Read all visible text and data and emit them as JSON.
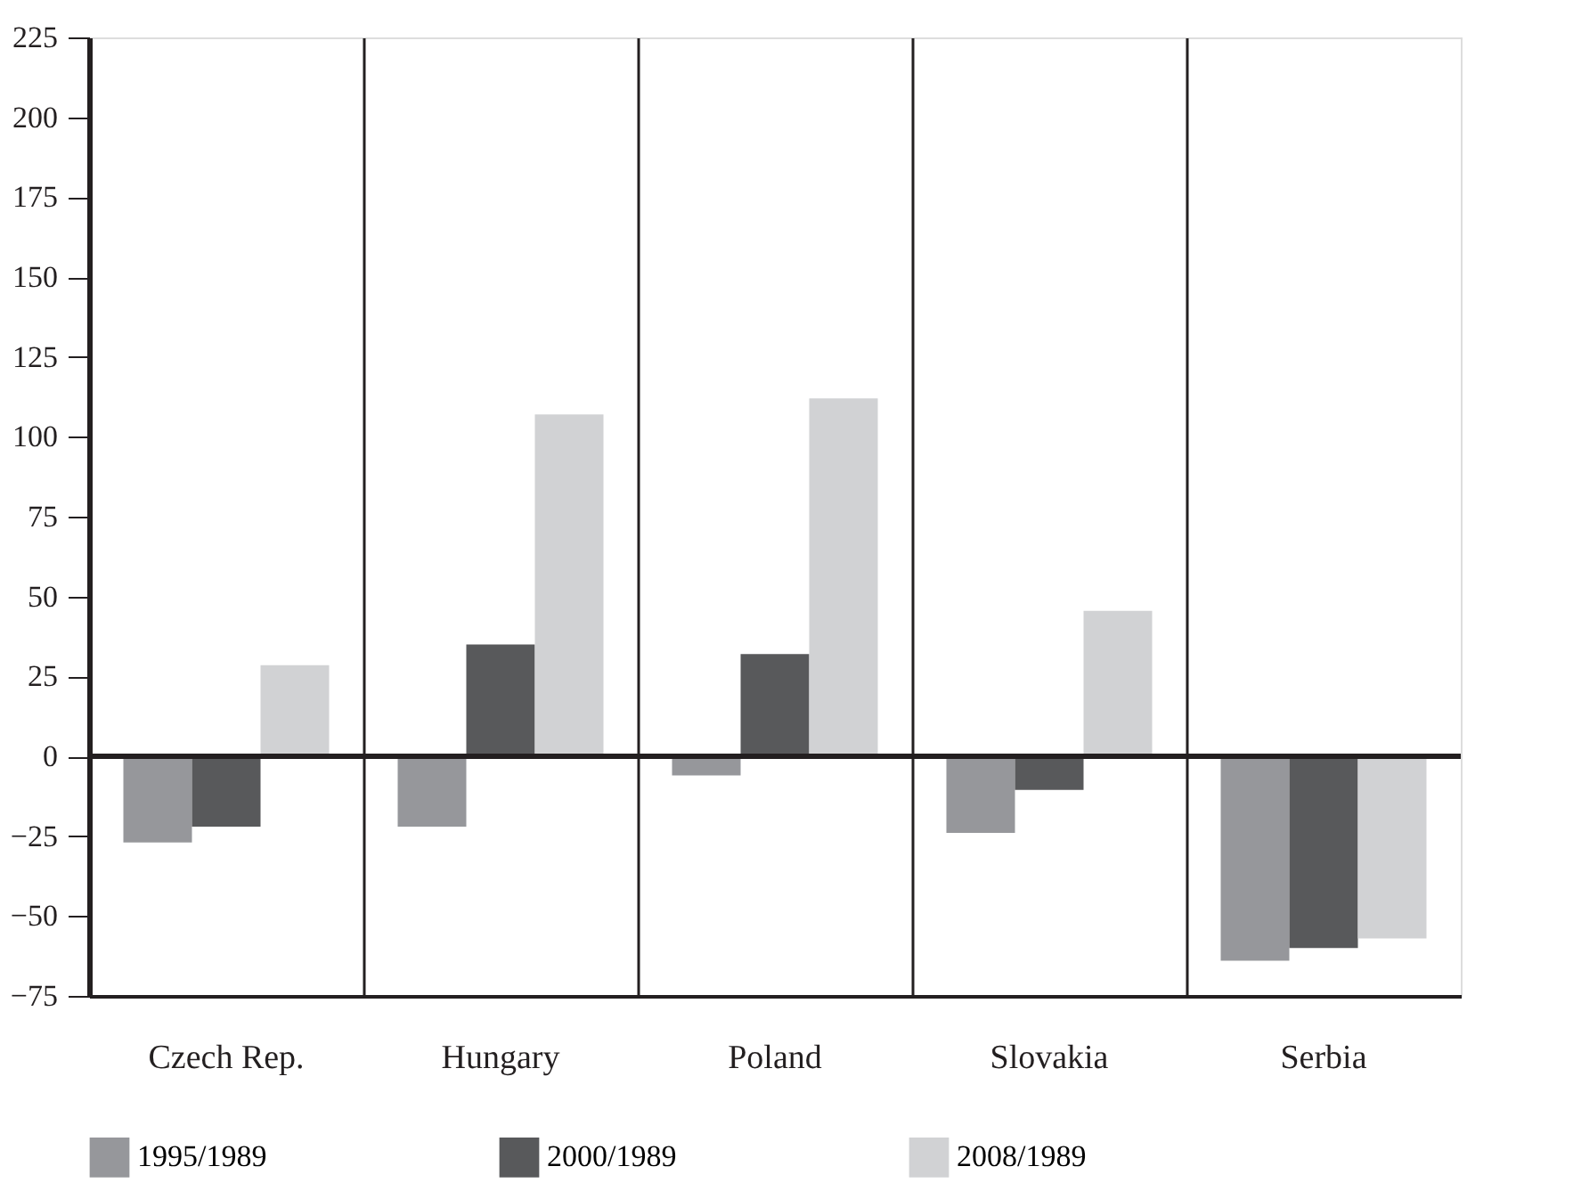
{
  "chart_data": {
    "type": "bar",
    "categories": [
      "Czech Rep.",
      "Hungary",
      "Poland",
      "Slovakia",
      "Serbia"
    ],
    "series": [
      {
        "name": "1995/1989",
        "color": "#96979b",
        "values": [
          -27,
          -22,
          -6,
          -24,
          -64
        ]
      },
      {
        "name": "2000/1989",
        "color": "#58595b",
        "values": [
          -22,
          35,
          32,
          -10.5,
          -60
        ]
      },
      {
        "name": "2008/1989",
        "color": "#d1d2d4",
        "values": [
          28.5,
          107,
          112,
          45.5,
          -57
        ]
      }
    ],
    "ylim": [
      -75,
      225
    ],
    "yticks": [
      -75,
      -50,
      -25,
      0,
      25,
      50,
      75,
      100,
      125,
      150,
      175,
      200,
      225
    ],
    "ref_lines": [
      {
        "axis": "y",
        "value": 0,
        "color": "#231f20"
      }
    ],
    "grid": "x",
    "legend": "bottom"
  }
}
